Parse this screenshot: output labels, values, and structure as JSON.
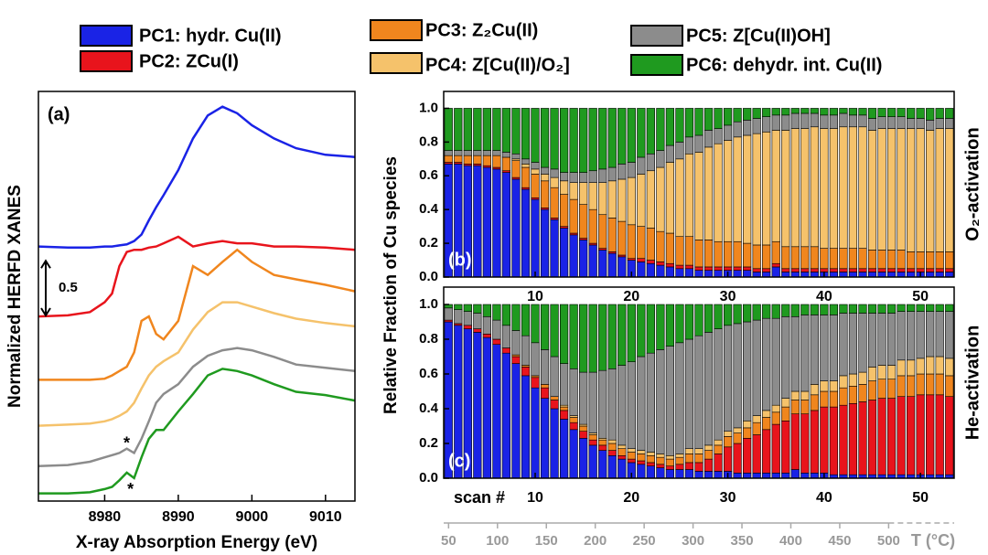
{
  "chart_data": [
    {
      "type": "line",
      "label": "(a)",
      "x_label": "X-ray Absorption Energy (eV)",
      "y_label": "Normalized HERFD XANES",
      "x": [
        8971,
        8975,
        8978,
        8980,
        8981,
        8982,
        8983,
        8984,
        8985,
        8986,
        8987,
        8988,
        8990,
        8992,
        8994,
        8996,
        8998,
        9000,
        9003,
        9006,
        9010,
        9014
      ],
      "xlim": [
        8971,
        9014
      ],
      "xticks": [
        8980,
        8990,
        9000,
        9010
      ],
      "ylim": [
        0,
        3.75
      ],
      "scale_bar": 0.5,
      "annotations": [
        {
          "text": "*",
          "x": 8983,
          "y": 0.52
        },
        {
          "text": "*",
          "x": 8983.5,
          "y": 0.1
        }
      ],
      "series": [
        {
          "name": "PC1: hydr. Cu(II)",
          "color": "#1a23e6",
          "values": [
            2.33,
            2.32,
            2.32,
            2.33,
            2.33,
            2.34,
            2.35,
            2.38,
            2.44,
            2.57,
            2.69,
            2.8,
            3.03,
            3.32,
            3.53,
            3.61,
            3.55,
            3.44,
            3.32,
            3.23,
            3.17,
            3.15
          ]
        },
        {
          "name": "PC2: ZCu(I)",
          "color": "#e8141c",
          "values": [
            1.69,
            1.7,
            1.73,
            1.82,
            1.9,
            2.15,
            2.28,
            2.3,
            2.3,
            2.32,
            2.33,
            2.36,
            2.42,
            2.33,
            2.36,
            2.38,
            2.36,
            2.36,
            2.33,
            2.33,
            2.32,
            2.3
          ]
        },
        {
          "name": "PC3: Z₂Cu(II)",
          "color": "#f0861e",
          "values": [
            1.11,
            1.11,
            1.11,
            1.12,
            1.15,
            1.19,
            1.23,
            1.36,
            1.65,
            1.69,
            1.53,
            1.48,
            1.65,
            2.15,
            2.07,
            2.19,
            2.3,
            2.19,
            2.07,
            2.03,
            1.98,
            1.92
          ]
        },
        {
          "name": "PC4: Z[Cu(II)/O₂]",
          "color": "#f5c26b",
          "values": [
            0.69,
            0.7,
            0.71,
            0.73,
            0.75,
            0.78,
            0.82,
            0.9,
            1.03,
            1.15,
            1.23,
            1.28,
            1.36,
            1.57,
            1.73,
            1.82,
            1.82,
            1.78,
            1.72,
            1.67,
            1.63,
            1.6
          ]
        },
        {
          "name": "PC5: Z[Cu(II)OH]",
          "color": "#8c8c8c",
          "values": [
            0.32,
            0.33,
            0.36,
            0.4,
            0.42,
            0.44,
            0.48,
            0.44,
            0.57,
            0.73,
            0.9,
            0.98,
            1.07,
            1.23,
            1.33,
            1.38,
            1.4,
            1.38,
            1.32,
            1.25,
            1.22,
            1.19
          ]
        },
        {
          "name": "PC6: dehydr. int. Cu(II)",
          "color": "#1f9a1f",
          "values": [
            0.07,
            0.07,
            0.08,
            0.11,
            0.13,
            0.19,
            0.26,
            0.21,
            0.4,
            0.57,
            0.65,
            0.65,
            0.82,
            0.98,
            1.15,
            1.21,
            1.19,
            1.15,
            1.07,
            1.0,
            0.97,
            0.92
          ]
        }
      ]
    },
    {
      "type": "stacked_bar",
      "label": "(b)",
      "side_label": "O₂-activation",
      "y_label": "Relative Fraction of Cu species",
      "x": [
        1,
        2,
        3,
        4,
        5,
        6,
        7,
        8,
        9,
        10,
        11,
        12,
        13,
        14,
        15,
        16,
        17,
        18,
        19,
        20,
        21,
        22,
        23,
        24,
        25,
        26,
        27,
        28,
        29,
        30,
        31,
        32,
        33,
        34,
        35,
        36,
        37,
        38,
        39,
        40,
        41,
        42,
        43,
        44,
        45,
        46,
        47,
        48,
        49,
        50,
        51,
        52,
        53
      ],
      "xlim": [
        0.5,
        53.5
      ],
      "xticks": [
        10,
        20,
        30,
        40,
        50
      ],
      "ylim": [
        0,
        1.1
      ],
      "yticks": [
        {
          "value": 0,
          "label": "0.0"
        },
        0.2,
        0.4,
        0.6,
        0.8,
        {
          "value": 1,
          "label": "1.0"
        }
      ],
      "series": [
        {
          "name": "PC1: hydr. Cu(II)",
          "color": "#1a23e6",
          "values": [
            0.67,
            0.67,
            0.66,
            0.66,
            0.65,
            0.64,
            0.62,
            0.58,
            0.52,
            0.46,
            0.4,
            0.34,
            0.29,
            0.25,
            0.22,
            0.19,
            0.16,
            0.14,
            0.12,
            0.1,
            0.09,
            0.08,
            0.07,
            0.06,
            0.05,
            0.05,
            0.04,
            0.04,
            0.04,
            0.04,
            0.04,
            0.04,
            0.03,
            0.03,
            0.06,
            0.03,
            0.03,
            0.03,
            0.03,
            0.03,
            0.03,
            0.03,
            0.03,
            0.03,
            0.03,
            0.03,
            0.03,
            0.03,
            0.03,
            0.03,
            0.03,
            0.03,
            0.03
          ]
        },
        {
          "name": "PC2: ZCu(I)",
          "color": "#e8141c",
          "values": [
            0.01,
            0.01,
            0.01,
            0.01,
            0.01,
            0.01,
            0.01,
            0.01,
            0.01,
            0.01,
            0.01,
            0.01,
            0.01,
            0.01,
            0.01,
            0.01,
            0.01,
            0.01,
            0.01,
            0.01,
            0.02,
            0.02,
            0.02,
            0.02,
            0.02,
            0.02,
            0.02,
            0.02,
            0.02,
            0.02,
            0.02,
            0.02,
            0.02,
            0.02,
            0.02,
            0.02,
            0.02,
            0.02,
            0.02,
            0.02,
            0.02,
            0.02,
            0.02,
            0.02,
            0.02,
            0.02,
            0.02,
            0.02,
            0.02,
            0.02,
            0.02,
            0.02,
            0.02
          ]
        },
        {
          "name": "PC3: Z₂Cu(II)",
          "color": "#f0861e",
          "values": [
            0.04,
            0.04,
            0.05,
            0.05,
            0.06,
            0.07,
            0.08,
            0.1,
            0.12,
            0.14,
            0.16,
            0.18,
            0.19,
            0.2,
            0.2,
            0.2,
            0.2,
            0.2,
            0.2,
            0.2,
            0.19,
            0.19,
            0.18,
            0.18,
            0.17,
            0.17,
            0.16,
            0.16,
            0.15,
            0.15,
            0.15,
            0.14,
            0.14,
            0.14,
            0.13,
            0.13,
            0.13,
            0.13,
            0.13,
            0.12,
            0.12,
            0.12,
            0.12,
            0.12,
            0.11,
            0.11,
            0.11,
            0.11,
            0.1,
            0.1,
            0.1,
            0.1,
            0.1
          ]
        },
        {
          "name": "PC4: Z[Cu(II)/O₂]",
          "color": "#f5c26b",
          "values": [
            0,
            0,
            0,
            0,
            0,
            0,
            0,
            0.01,
            0.02,
            0.03,
            0.04,
            0.06,
            0.08,
            0.1,
            0.13,
            0.16,
            0.19,
            0.22,
            0.25,
            0.28,
            0.31,
            0.34,
            0.38,
            0.42,
            0.46,
            0.49,
            0.52,
            0.55,
            0.58,
            0.6,
            0.62,
            0.64,
            0.66,
            0.67,
            0.66,
            0.69,
            0.7,
            0.7,
            0.71,
            0.71,
            0.71,
            0.72,
            0.72,
            0.72,
            0.71,
            0.72,
            0.72,
            0.72,
            0.73,
            0.73,
            0.72,
            0.73,
            0.73
          ]
        },
        {
          "name": "PC5: Z[Cu(II)OH]",
          "color": "#8c8c8c",
          "values": [
            0.03,
            0.03,
            0.03,
            0.03,
            0.03,
            0.03,
            0.03,
            0.03,
            0.03,
            0.04,
            0.04,
            0.05,
            0.05,
            0.06,
            0.06,
            0.07,
            0.08,
            0.08,
            0.09,
            0.09,
            0.1,
            0.1,
            0.1,
            0.1,
            0.1,
            0.1,
            0.1,
            0.1,
            0.09,
            0.09,
            0.09,
            0.09,
            0.09,
            0.09,
            0.09,
            0.09,
            0.09,
            0.09,
            0.08,
            0.08,
            0.08,
            0.08,
            0.07,
            0.07,
            0.07,
            0.07,
            0.07,
            0.07,
            0.06,
            0.06,
            0.06,
            0.06,
            0.06
          ]
        },
        {
          "name": "PC6: dehydr. int. Cu(II)",
          "color": "#1f9a1f",
          "values": [
            0.25,
            0.25,
            0.25,
            0.25,
            0.25,
            0.25,
            0.26,
            0.27,
            0.3,
            0.32,
            0.35,
            0.36,
            0.38,
            0.38,
            0.38,
            0.37,
            0.36,
            0.35,
            0.33,
            0.32,
            0.29,
            0.27,
            0.25,
            0.22,
            0.2,
            0.17,
            0.16,
            0.13,
            0.12,
            0.1,
            0.08,
            0.07,
            0.06,
            0.05,
            0.04,
            0.04,
            0.03,
            0.03,
            0.03,
            0.04,
            0.04,
            0.03,
            0.04,
            0.04,
            0.06,
            0.05,
            0.05,
            0.05,
            0.06,
            0.06,
            0.07,
            0.06,
            0.06
          ]
        }
      ]
    },
    {
      "type": "stacked_bar",
      "label": "(c)",
      "side_label": "He-activation",
      "x_label": "scan #",
      "x": [
        1,
        2,
        3,
        4,
        5,
        6,
        7,
        8,
        9,
        10,
        11,
        12,
        13,
        14,
        15,
        16,
        17,
        18,
        19,
        20,
        21,
        22,
        23,
        24,
        25,
        26,
        27,
        28,
        29,
        30,
        31,
        32,
        33,
        34,
        35,
        36,
        37,
        38,
        39,
        40,
        41,
        42,
        43,
        44,
        45,
        46,
        47,
        48,
        49,
        50,
        51,
        52,
        53
      ],
      "xlim": [
        0.5,
        53.5
      ],
      "xticks": [
        10,
        20,
        30,
        40,
        50
      ],
      "ylim": [
        0,
        1.1
      ],
      "yticks": [
        {
          "value": 0,
          "label": "0.0"
        },
        0.2,
        0.4,
        0.6,
        0.8,
        {
          "value": 1,
          "label": "1.0"
        }
      ],
      "x2_label": "T (°C)",
      "x2lim": [
        45,
        567
      ],
      "x2ticks": [
        50,
        100,
        150,
        200,
        250,
        300,
        350,
        400,
        450,
        500
      ],
      "series": [
        {
          "name": "PC1: hydr. Cu(II)",
          "color": "#1a23e6",
          "values": [
            0.9,
            0.88,
            0.86,
            0.84,
            0.81,
            0.77,
            0.72,
            0.66,
            0.59,
            0.52,
            0.46,
            0.4,
            0.34,
            0.28,
            0.23,
            0.19,
            0.16,
            0.13,
            0.11,
            0.09,
            0.08,
            0.07,
            0.06,
            0.05,
            0.05,
            0.05,
            0.04,
            0.04,
            0.04,
            0.04,
            0.03,
            0.03,
            0.03,
            0.03,
            0.03,
            0.03,
            0.05,
            0.03,
            0.03,
            0.03,
            0.02,
            0.02,
            0.02,
            0.02,
            0.02,
            0.02,
            0.02,
            0.02,
            0.02,
            0.02,
            0.02,
            0.02,
            0.02
          ]
        },
        {
          "name": "PC2: ZCu(I)",
          "color": "#e8141c",
          "values": [
            0.01,
            0.01,
            0.02,
            0.02,
            0.02,
            0.03,
            0.03,
            0.04,
            0.05,
            0.06,
            0.06,
            0.05,
            0.05,
            0.04,
            0.04,
            0.03,
            0.03,
            0.03,
            0.02,
            0.02,
            0.02,
            0.02,
            0.02,
            0.02,
            0.03,
            0.04,
            0.05,
            0.07,
            0.1,
            0.14,
            0.17,
            0.2,
            0.22,
            0.25,
            0.28,
            0.3,
            0.32,
            0.34,
            0.36,
            0.38,
            0.39,
            0.4,
            0.41,
            0.42,
            0.43,
            0.44,
            0.44,
            0.45,
            0.45,
            0.46,
            0.46,
            0.46,
            0.45
          ]
        },
        {
          "name": "PC3: Z₂Cu(II)",
          "color": "#f0861e",
          "values": [
            0,
            0,
            0,
            0,
            0,
            0,
            0,
            0.01,
            0.01,
            0.01,
            0.02,
            0.02,
            0.02,
            0.03,
            0.03,
            0.03,
            0.03,
            0.04,
            0.04,
            0.04,
            0.04,
            0.04,
            0.04,
            0.04,
            0.04,
            0.05,
            0.05,
            0.05,
            0.05,
            0.06,
            0.06,
            0.06,
            0.07,
            0.07,
            0.07,
            0.08,
            0.08,
            0.08,
            0.09,
            0.09,
            0.09,
            0.1,
            0.1,
            0.1,
            0.11,
            0.11,
            0.11,
            0.12,
            0.12,
            0.12,
            0.12,
            0.12,
            0.12
          ]
        },
        {
          "name": "PC4: Z[Cu(II)/O₂]",
          "color": "#f5c26b",
          "values": [
            0,
            0,
            0,
            0,
            0,
            0,
            0,
            0,
            0,
            0,
            0,
            0,
            0.01,
            0.01,
            0.01,
            0.01,
            0.01,
            0.02,
            0.02,
            0.02,
            0.02,
            0.02,
            0.02,
            0.02,
            0.02,
            0.03,
            0.03,
            0.03,
            0.03,
            0.03,
            0.03,
            0.04,
            0.04,
            0.04,
            0.04,
            0.05,
            0.05,
            0.05,
            0.06,
            0.06,
            0.06,
            0.07,
            0.07,
            0.07,
            0.08,
            0.08,
            0.08,
            0.09,
            0.09,
            0.09,
            0.1,
            0.1,
            0.1
          ]
        },
        {
          "name": "PC5: Z[Cu(II)OH]",
          "color": "#8c8c8c",
          "values": [
            0.07,
            0.08,
            0.08,
            0.09,
            0.1,
            0.11,
            0.13,
            0.14,
            0.17,
            0.19,
            0.2,
            0.23,
            0.24,
            0.27,
            0.3,
            0.35,
            0.39,
            0.41,
            0.46,
            0.5,
            0.54,
            0.57,
            0.6,
            0.63,
            0.64,
            0.63,
            0.65,
            0.65,
            0.64,
            0.61,
            0.6,
            0.57,
            0.55,
            0.53,
            0.5,
            0.47,
            0.43,
            0.44,
            0.4,
            0.38,
            0.38,
            0.36,
            0.35,
            0.34,
            0.31,
            0.3,
            0.3,
            0.28,
            0.28,
            0.27,
            0.26,
            0.26,
            0.27
          ]
        },
        {
          "name": "PC6: dehydr. int. Cu(II)",
          "color": "#1f9a1f",
          "values": [
            0.02,
            0.03,
            0.04,
            0.05,
            0.07,
            0.09,
            0.12,
            0.15,
            0.18,
            0.22,
            0.26,
            0.3,
            0.34,
            0.37,
            0.39,
            0.39,
            0.38,
            0.37,
            0.35,
            0.33,
            0.3,
            0.28,
            0.26,
            0.24,
            0.22,
            0.2,
            0.18,
            0.16,
            0.14,
            0.12,
            0.11,
            0.1,
            0.09,
            0.08,
            0.08,
            0.07,
            0.07,
            0.06,
            0.06,
            0.06,
            0.06,
            0.05,
            0.05,
            0.05,
            0.05,
            0.05,
            0.05,
            0.04,
            0.04,
            0.04,
            0.04,
            0.04,
            0.04
          ]
        }
      ]
    }
  ]
}
